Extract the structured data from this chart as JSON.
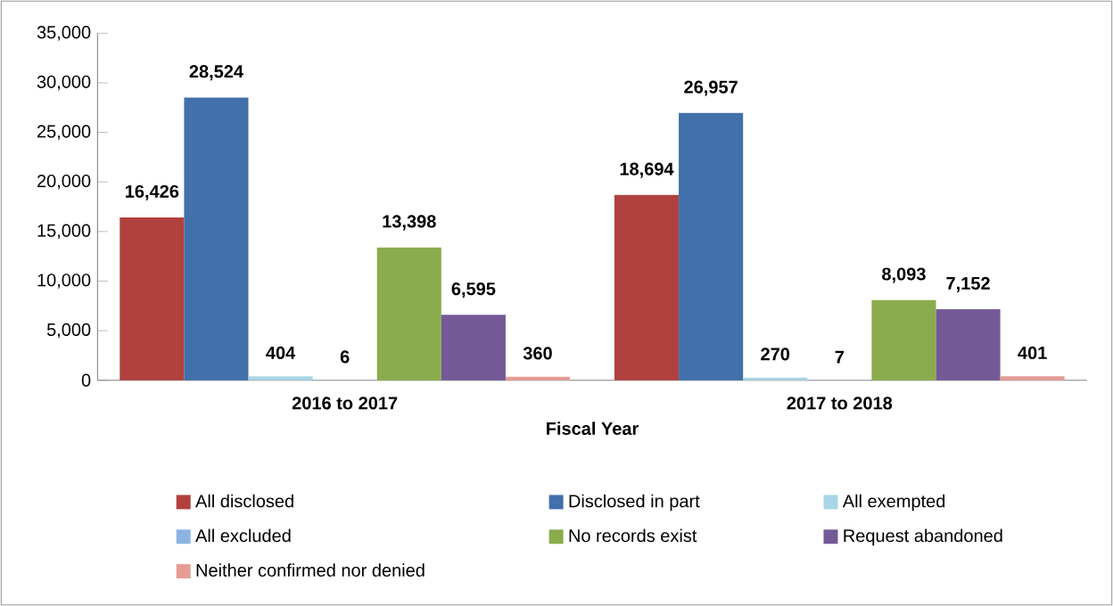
{
  "chart_data": {
    "type": "bar",
    "xlabel": "Fiscal Year",
    "categories": [
      "2016 to 2017",
      "2017 to 2018"
    ],
    "series": [
      {
        "name": "All disclosed",
        "color": "#b0413e",
        "values": [
          16426,
          18694
        ],
        "value_labels": [
          "16,426",
          "18,694"
        ]
      },
      {
        "name": "Disclosed in part",
        "color": "#4170aa",
        "values": [
          28524,
          26957
        ],
        "value_labels": [
          "28,524",
          "26,957"
        ]
      },
      {
        "name": "All exempted",
        "color": "#a8d6e6",
        "values": [
          404,
          270
        ],
        "value_labels": [
          "404",
          "270"
        ]
      },
      {
        "name": "All excluded",
        "color": "#8db3e2",
        "values": [
          6,
          7
        ],
        "value_labels": [
          "6",
          "7"
        ]
      },
      {
        "name": "No records exist",
        "color": "#8aac4d",
        "values": [
          13398,
          8093
        ],
        "value_labels": [
          "13,398",
          "8,093"
        ]
      },
      {
        "name": "Request abandoned",
        "color": "#735a96",
        "values": [
          6595,
          7152
        ],
        "value_labels": [
          "6,595",
          "7,152"
        ]
      },
      {
        "name": "Neither confirmed nor denied",
        "color": "#e49c94",
        "values": [
          360,
          401
        ],
        "value_labels": [
          "360",
          "401"
        ]
      }
    ],
    "ylim": [
      0,
      35000
    ],
    "yticks": [
      0,
      {
        "value": 5000,
        "label": "5,000"
      },
      {
        "value": 10000,
        "label": "10,000"
      },
      {
        "value": 15000,
        "label": "15,000"
      },
      {
        "value": 20000,
        "label": "20,000"
      },
      {
        "value": 25000,
        "label": "25,000"
      },
      {
        "value": 30000,
        "label": "30,000"
      },
      {
        "value": 35000,
        "label": "35,000"
      }
    ],
    "grid": false,
    "legend": "bottom"
  }
}
